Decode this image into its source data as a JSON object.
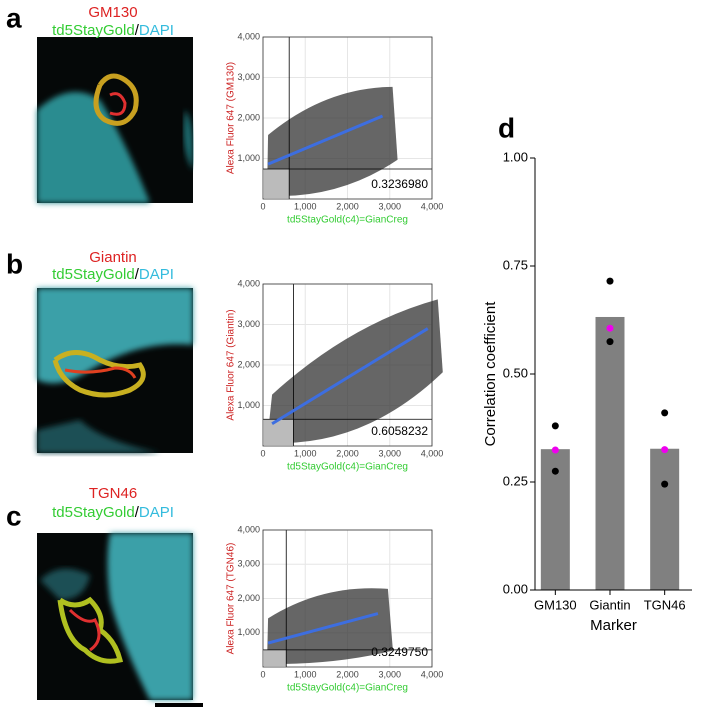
{
  "panels": [
    {
      "letter": "a",
      "marker": "GM130",
      "green": "td5StayGold",
      "slash": "/",
      "blue": "DAPI"
    },
    {
      "letter": "b",
      "marker": "Giantin",
      "green": "td5StayGold",
      "slash": "/",
      "blue": "DAPI"
    },
    {
      "letter": "c",
      "marker": "TGN46",
      "green": "td5StayGold",
      "slash": "/",
      "blue": "DAPI"
    },
    {
      "letter": "d"
    }
  ],
  "chart_data": [
    {
      "type": "scatter",
      "xlabel": "td5StayGold(c4)=GianCreg",
      "ylabel": "Alexa Fluor 647 (GM130)",
      "xlim": [
        0,
        4000
      ],
      "ylim": [
        0,
        4000
      ],
      "xticks": [
        0,
        {
          "value": 1000,
          "label": "1,000"
        },
        {
          "value": 2000,
          "label": "2,000"
        },
        {
          "value": 3000,
          "label": "3,000"
        },
        {
          "value": 4000,
          "label": "4,000"
        }
      ],
      "yticks": [
        {
          "value": 1000,
          "label": "1,000"
        },
        {
          "value": 2000,
          "label": "2,000"
        },
        {
          "value": 3000,
          "label": "3,000"
        },
        {
          "value": 4000,
          "label": "4,000"
        }
      ],
      "x_threshold": 620,
      "y_threshold": 740,
      "fit": {
        "x": [
          120,
          2830
        ],
        "y": [
          860,
          2050
        ],
        "color": "#3d6ee0"
      },
      "annotation": "0.3236980",
      "grid": true
    },
    {
      "type": "scatter",
      "xlabel": "td5StayGold(c4)=GianCreg",
      "ylabel": "Alexa Fluor 647 (Giantin)",
      "xlim": [
        0,
        4000
      ],
      "ylim": [
        0,
        4000
      ],
      "xticks": [
        0,
        {
          "value": 1000,
          "label": "1,000"
        },
        {
          "value": 2000,
          "label": "2,000"
        },
        {
          "value": 3000,
          "label": "3,000"
        },
        {
          "value": 4000,
          "label": "4,000"
        }
      ],
      "yticks": [
        {
          "value": 1000,
          "label": "1,000"
        },
        {
          "value": 2000,
          "label": "2,000"
        },
        {
          "value": 3000,
          "label": "3,000"
        },
        {
          "value": 4000,
          "label": "4,000"
        }
      ],
      "x_threshold": 720,
      "y_threshold": 660,
      "fit": {
        "x": [
          215,
          3900
        ],
        "y": [
          550,
          2900
        ],
        "color": "#3d6ee0"
      },
      "annotation": "0.6058232",
      "grid": true
    },
    {
      "type": "scatter",
      "xlabel": "td5StayGold(c4)=GianCreg",
      "ylabel": "Alexa Fluor 647 (TGN46)",
      "xlim": [
        0,
        4000
      ],
      "ylim": [
        0,
        4000
      ],
      "xticks": [
        0,
        {
          "value": 1000,
          "label": "1,000"
        },
        {
          "value": 2000,
          "label": "2,000"
        },
        {
          "value": 3000,
          "label": "3,000"
        },
        {
          "value": 4000,
          "label": "4,000"
        }
      ],
      "yticks": [
        {
          "value": 1000,
          "label": "1,000"
        },
        {
          "value": 2000,
          "label": "2,000"
        },
        {
          "value": 3000,
          "label": "3,000"
        },
        {
          "value": 4000,
          "label": "4,000"
        }
      ],
      "x_threshold": 550,
      "y_threshold": 500,
      "fit": {
        "x": [
          120,
          2720
        ],
        "y": [
          700,
          1560
        ],
        "color": "#3d6ee0"
      },
      "annotation": "0.3249750",
      "grid": true
    },
    {
      "type": "bar",
      "xlabel": "Marker",
      "ylabel": "Correlation coefficient",
      "categories": [
        "GM130",
        "Giantin",
        "TGN46"
      ],
      "values": [
        0.326,
        0.632,
        0.327
      ],
      "color": "#808080",
      "replicates": [
        [
          0.38,
          0.275
        ],
        [
          0.715,
          0.575
        ],
        [
          0.41,
          0.245
        ]
      ],
      "replicate_color": "#000000",
      "highlighted": [
        0.324,
        0.606,
        0.325
      ],
      "highlight_color": "#ee00ee",
      "ylim": [
        0,
        1
      ],
      "yticks": [
        {
          "value": 0,
          "label": "0.00"
        },
        {
          "value": 0.25,
          "label": "0.25"
        },
        {
          "value": 0.5,
          "label": "0.50"
        },
        {
          "value": 0.75,
          "label": "0.75"
        },
        {
          "value": 1,
          "label": "1.00"
        }
      ]
    }
  ]
}
